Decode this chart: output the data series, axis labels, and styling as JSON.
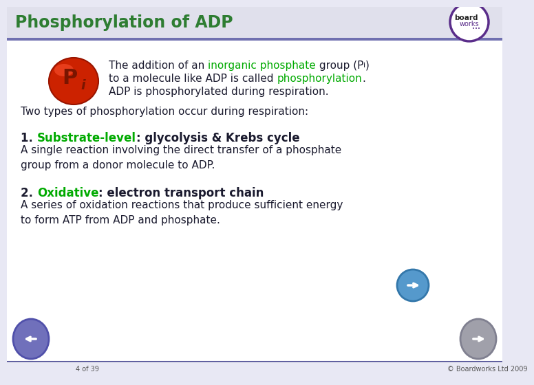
{
  "title": "Phosphorylation of ADP",
  "title_color": "#2E7D32",
  "title_bg_color": "#E0E0EC",
  "title_bar_color": "#7070B0",
  "bg_color": "#E8E8F4",
  "main_bg": "#FFFFFF",
  "para2": "Two types of phosphorylation occur during respiration:",
  "section1_body": "A single reaction involving the direct transfer of a phosphate\ngroup from a donor molecule to ADP.",
  "section2_body": "A series of oxidation reactions that produce sufficient energy\nto form ATP from ADP and phosphate.",
  "footer_left": "4 of 39",
  "footer_right": "© Boardworks Ltd 2009",
  "green_color": "#00AA00",
  "dark_text": "#1A1A2E",
  "pi_red_outer": "#CC2200",
  "pi_red_inner": "#FF4422",
  "pi_text": "#8B1A00",
  "logo_circle_color": "#5A2D8A",
  "footer_line_color": "#6060A0",
  "nav_left_color": "#6060B0",
  "nav_right_color": "#909090",
  "nav_forward_color": "#4488BB"
}
